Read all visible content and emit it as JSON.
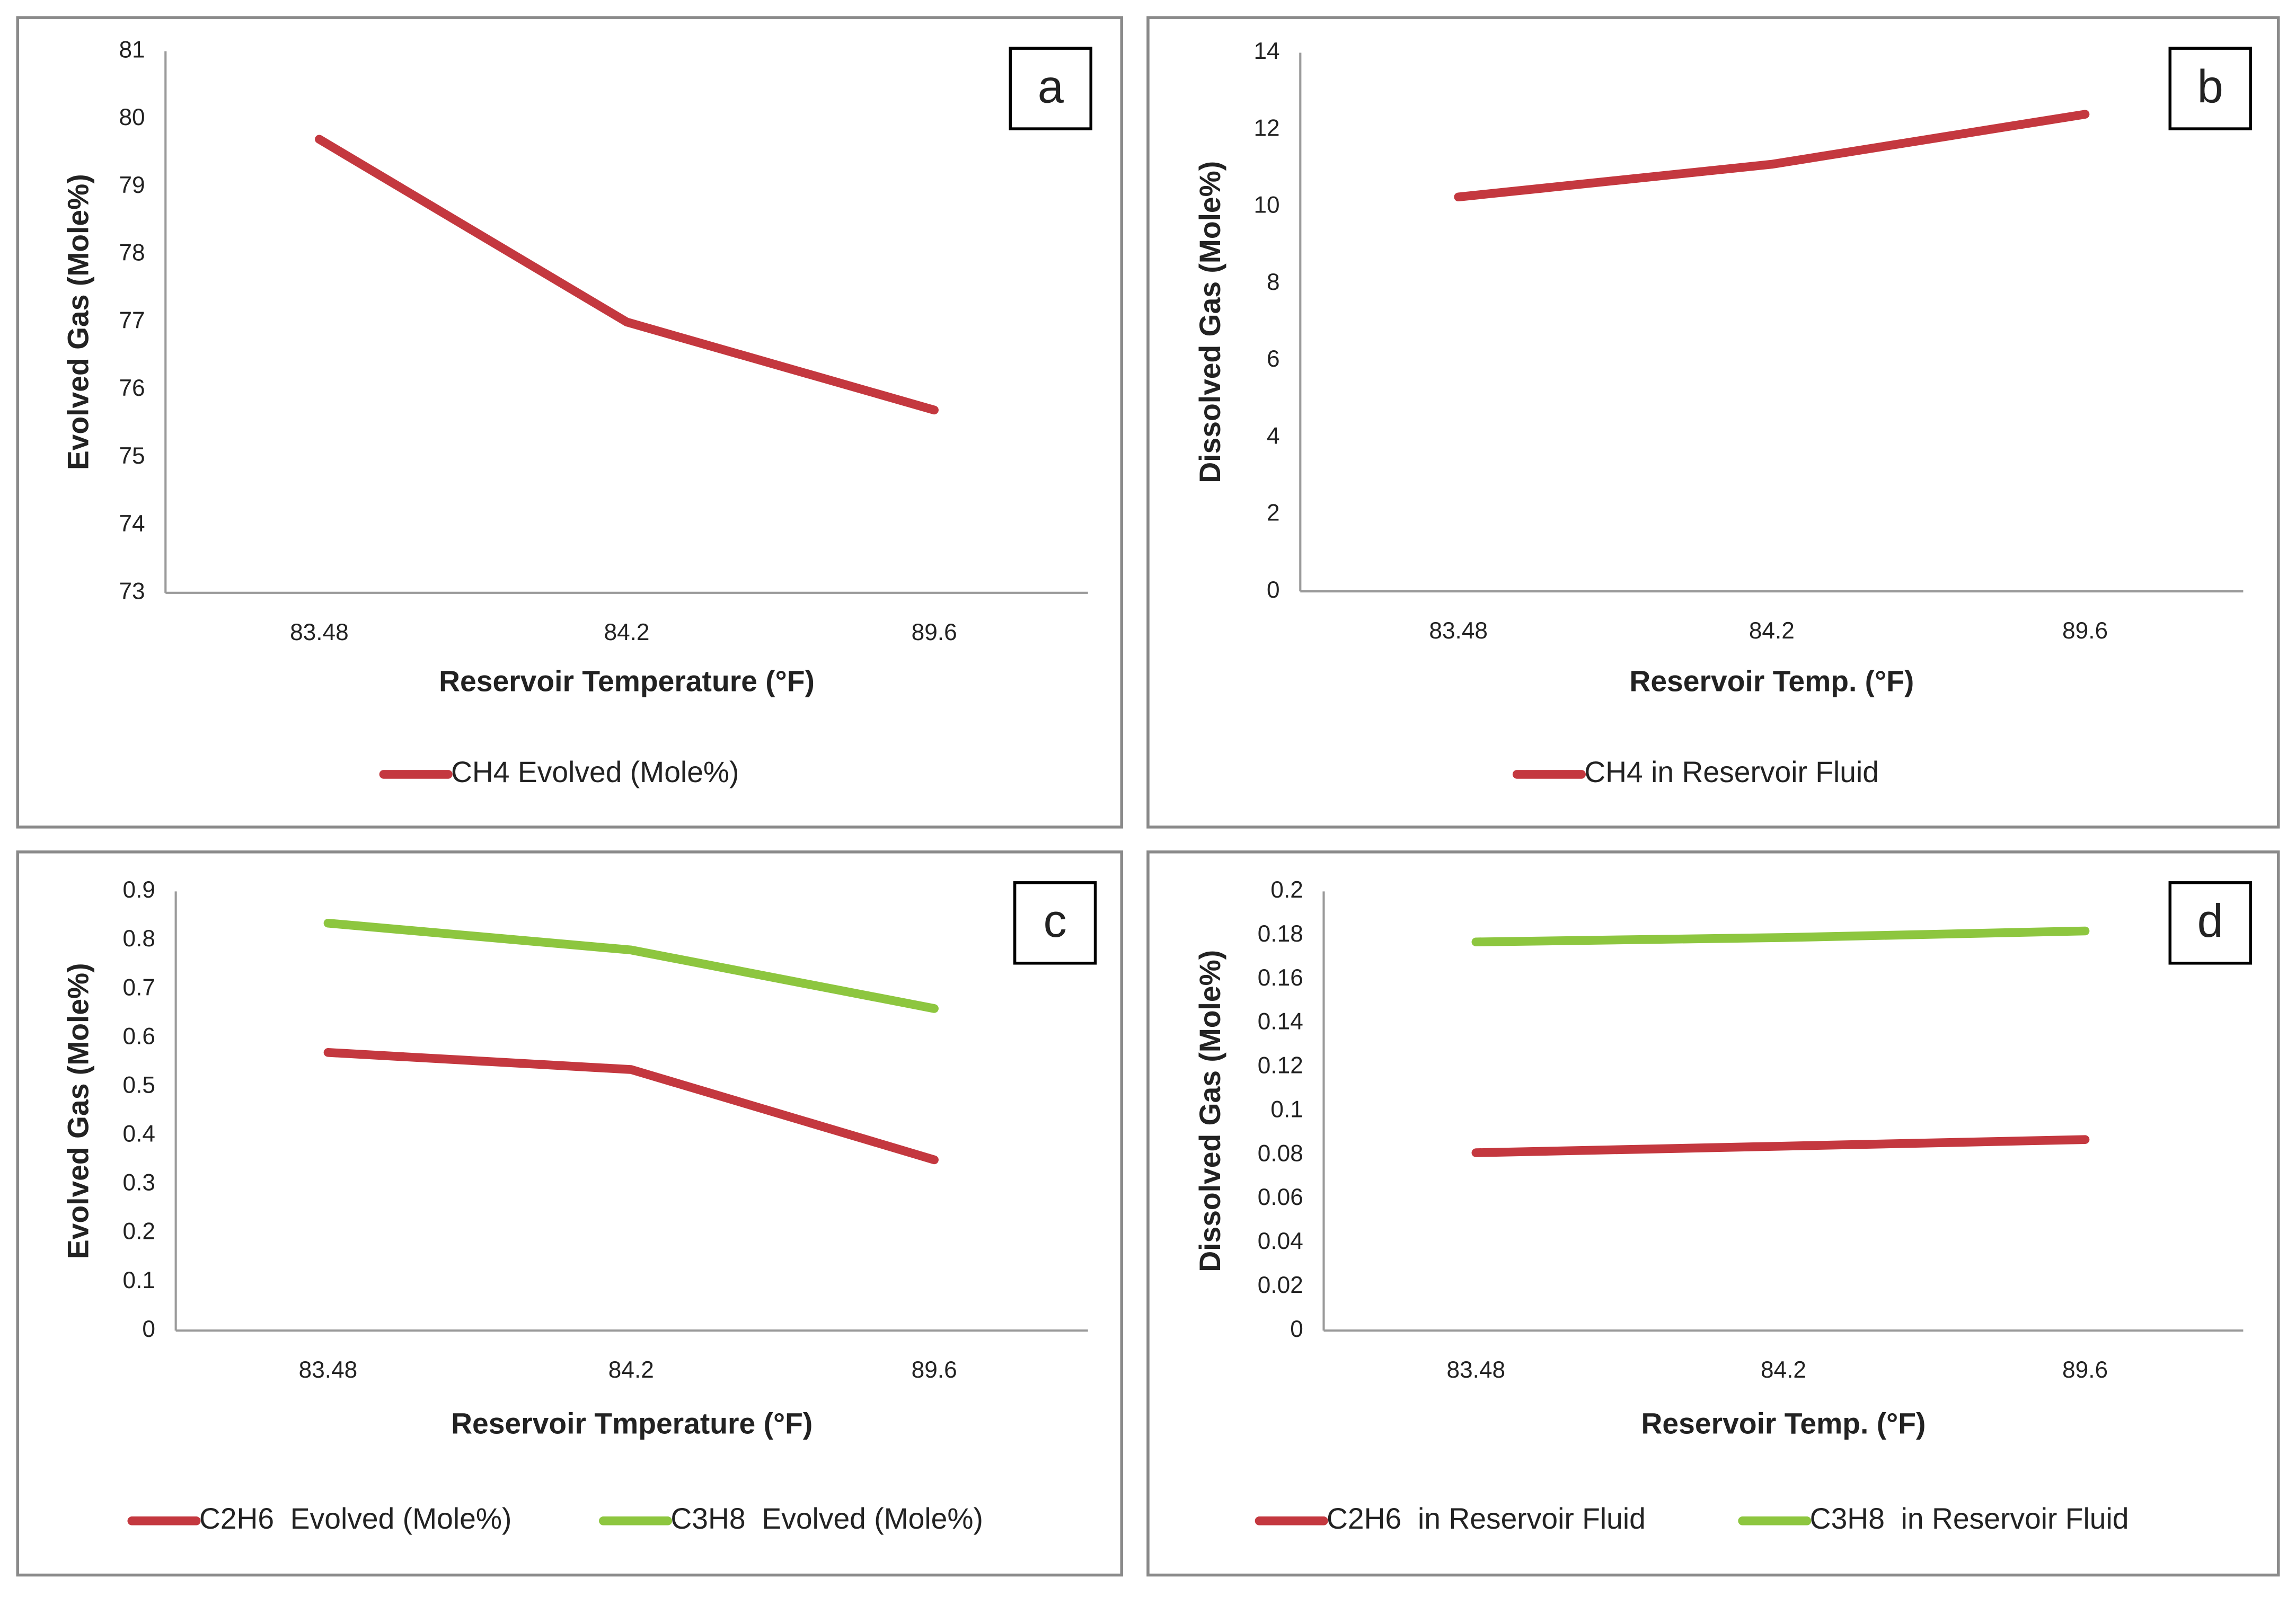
{
  "chart_data": [
    {
      "type": "line",
      "panel": "a",
      "categories": [
        "83.48",
        "84.2",
        "89.6"
      ],
      "series": [
        {
          "name": "CH4 Evolved (Mole%)",
          "color": "#c4383f",
          "values": [
            79.7,
            77.0,
            75.7
          ]
        }
      ],
      "ylim": [
        73,
        81
      ],
      "yticks": [
        73,
        74,
        75,
        76,
        77,
        78,
        79,
        80,
        81
      ],
      "xlabel": "Reservoir Temperature (°F)",
      "ylabel": "Evolved Gas (Mole%)"
    },
    {
      "type": "line",
      "panel": "b",
      "categories": [
        "83.48",
        "84.2",
        "89.6"
      ],
      "series": [
        {
          "name": "CH4 in Reservoir Fluid",
          "color": "#c4383f",
          "values": [
            10.25,
            11.1,
            12.4
          ]
        }
      ],
      "ylim": [
        0,
        14
      ],
      "yticks": [
        0,
        2,
        4,
        6,
        8,
        10,
        12,
        14
      ],
      "xlabel": "Reservoir Temp. (°F)",
      "ylabel": "Dissolved Gas (Mole%)"
    },
    {
      "type": "line",
      "panel": "c",
      "categories": [
        "83.48",
        "84.2",
        "89.6"
      ],
      "series": [
        {
          "name": "C2H6  Evolved (Mole%)",
          "color": "#c4383f",
          "values": [
            0.57,
            0.535,
            0.35
          ]
        },
        {
          "name": "C3H8  Evolved (Mole%)",
          "color": "#8dc63f",
          "values": [
            0.835,
            0.78,
            0.66
          ]
        }
      ],
      "ylim": [
        0,
        0.9
      ],
      "yticks": [
        0,
        0.1,
        0.2,
        0.3,
        0.4,
        0.5,
        0.6,
        0.7,
        0.8,
        0.9
      ],
      "xlabel": "Reservoir Tmperature (°F)",
      "ylabel": "Evolved Gas (Mole%)"
    },
    {
      "type": "line",
      "panel": "d",
      "categories": [
        "83.48",
        "84.2",
        "89.6"
      ],
      "series": [
        {
          "name": "C2H6  in Reservoir Fluid",
          "color": "#c4383f",
          "values": [
            0.081,
            0.084,
            0.087
          ]
        },
        {
          "name": "C3H8  in Reservoir Fluid",
          "color": "#8dc63f",
          "values": [
            0.177,
            0.179,
            0.182
          ]
        }
      ],
      "ylim": [
        0,
        0.2
      ],
      "yticks": [
        0,
        0.02,
        0.04,
        0.06,
        0.08,
        0.1,
        0.12,
        0.14,
        0.16,
        0.18,
        0.2
      ],
      "xlabel": "Reservoir Temp. (°F)",
      "ylabel": "Dissolved Gas (Mole%)"
    }
  ]
}
